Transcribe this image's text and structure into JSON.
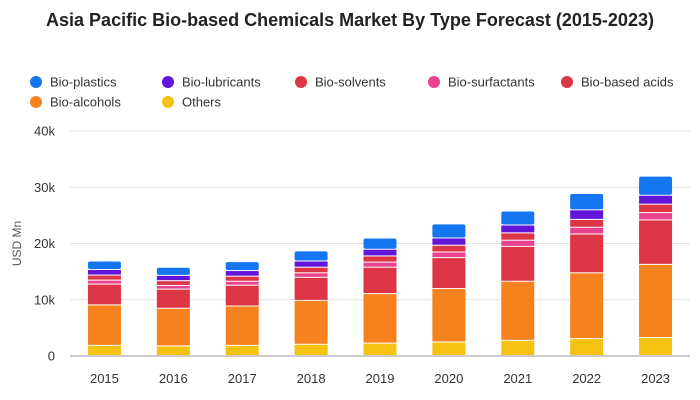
{
  "chart_data": {
    "type": "bar",
    "stacked": true,
    "title": "Asia Pacific Bio-based Chemicals Market By Type Forecast (2015-2023)",
    "ylabel": "USD Mn",
    "xlabel": "",
    "ylim": [
      0,
      40000
    ],
    "yticks": [
      0,
      10000,
      20000,
      30000,
      40000
    ],
    "ytick_labels": [
      "0",
      "10k",
      "20k",
      "30k",
      "40k"
    ],
    "grid": true,
    "legend_position": "top",
    "categories": [
      "2015",
      "2016",
      "2017",
      "2018",
      "2019",
      "2020",
      "2021",
      "2022",
      "2023"
    ],
    "series": [
      {
        "name": "Others",
        "color": "#f5c211",
        "values": [
          1800,
          1700,
          1800,
          2000,
          2200,
          2400,
          2700,
          3000,
          3200
        ]
      },
      {
        "name": "Bio-alcohols",
        "color": "#f5821f",
        "values": [
          7200,
          6700,
          7000,
          7800,
          8800,
          9500,
          10500,
          11700,
          13000
        ]
      },
      {
        "name": "Bio-based acids",
        "color": "#dc3545",
        "values": [
          3700,
          3400,
          3700,
          4100,
          4700,
          5500,
          6200,
          6900,
          7900
        ]
      },
      {
        "name": "Bio-surfactants",
        "color": "#e8438c",
        "values": [
          700,
          650,
          700,
          800,
          900,
          1000,
          1100,
          1200,
          1300
        ]
      },
      {
        "name": "Bio-solvents",
        "color": "#dc3545",
        "values": [
          900,
          850,
          900,
          1000,
          1100,
          1200,
          1300,
          1400,
          1500
        ]
      },
      {
        "name": "Bio-lubricants",
        "color": "#6216d9",
        "values": [
          1000,
          950,
          1000,
          1100,
          1200,
          1300,
          1400,
          1700,
          1600
        ]
      },
      {
        "name": "Bio-plastics",
        "color": "#1476f0",
        "values": [
          1500,
          1450,
          1600,
          1800,
          2000,
          2500,
          2500,
          2900,
          3400
        ]
      }
    ],
    "legend_order": [
      "Bio-plastics",
      "Bio-lubricants",
      "Bio-solvents",
      "Bio-surfactants",
      "Bio-based acids",
      "Bio-alcohols",
      "Others"
    ]
  }
}
